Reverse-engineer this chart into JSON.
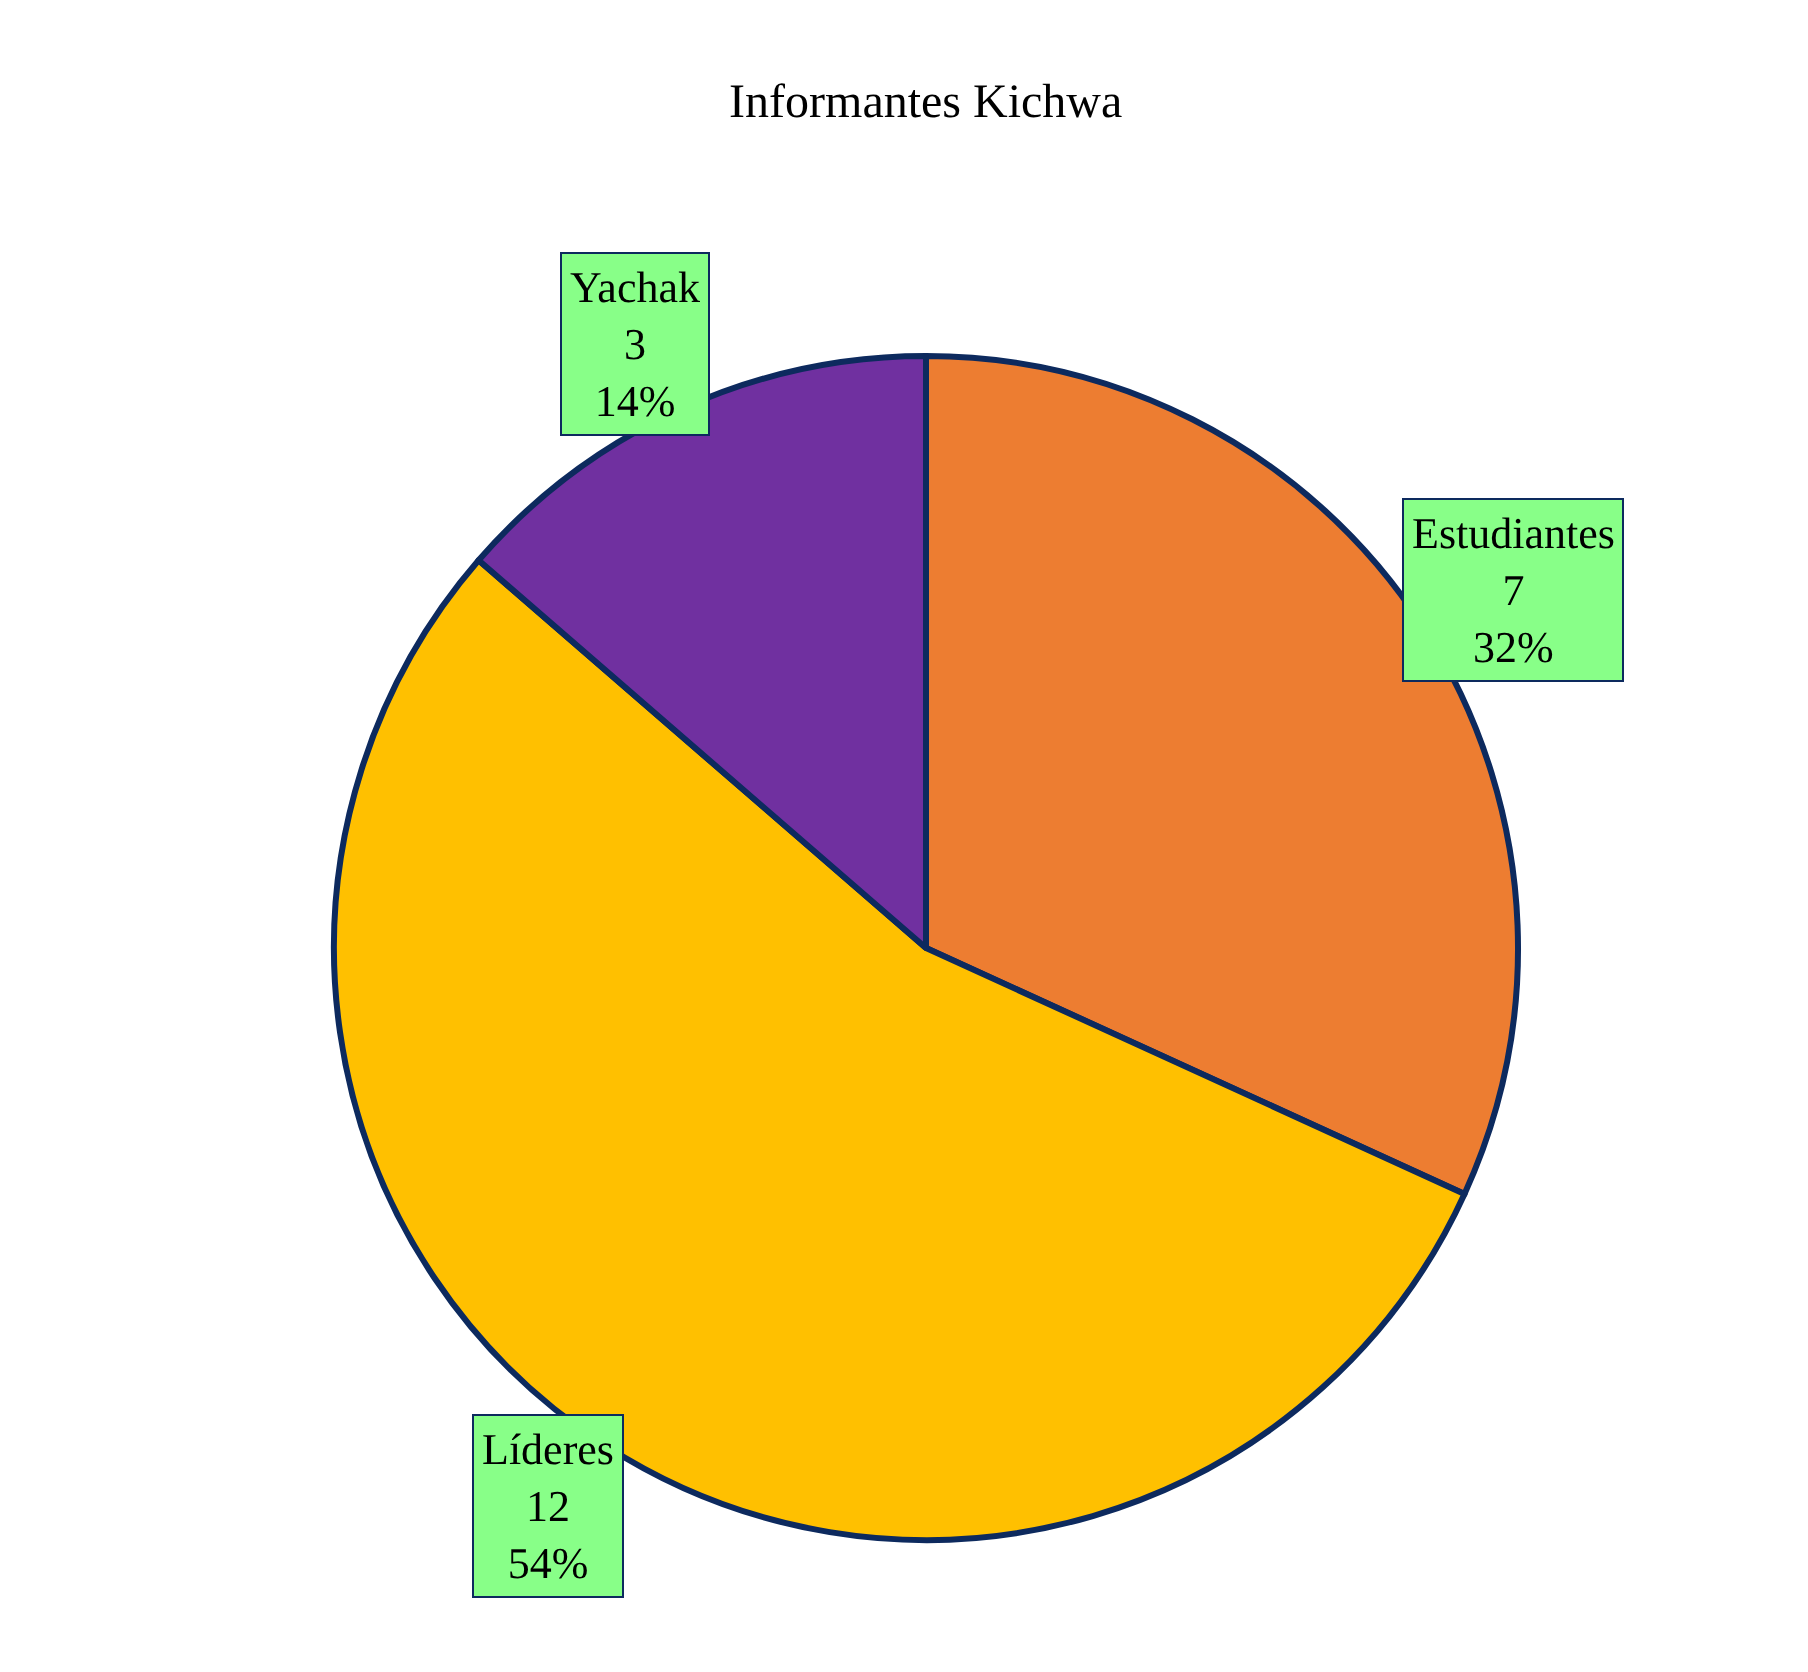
{
  "chart_data": {
    "type": "pie",
    "title": "Informantes Kichwa",
    "categories": [
      "Estudiantes",
      "Líderes",
      "Yachak"
    ],
    "values": [
      7,
      12,
      3
    ],
    "value_labels": [
      "7\n32%",
      "12\n54%",
      "3\n14%"
    ],
    "colors": [
      "#ed7d31",
      "#ffc000",
      "#7030a0"
    ],
    "legend": false
  }
}
